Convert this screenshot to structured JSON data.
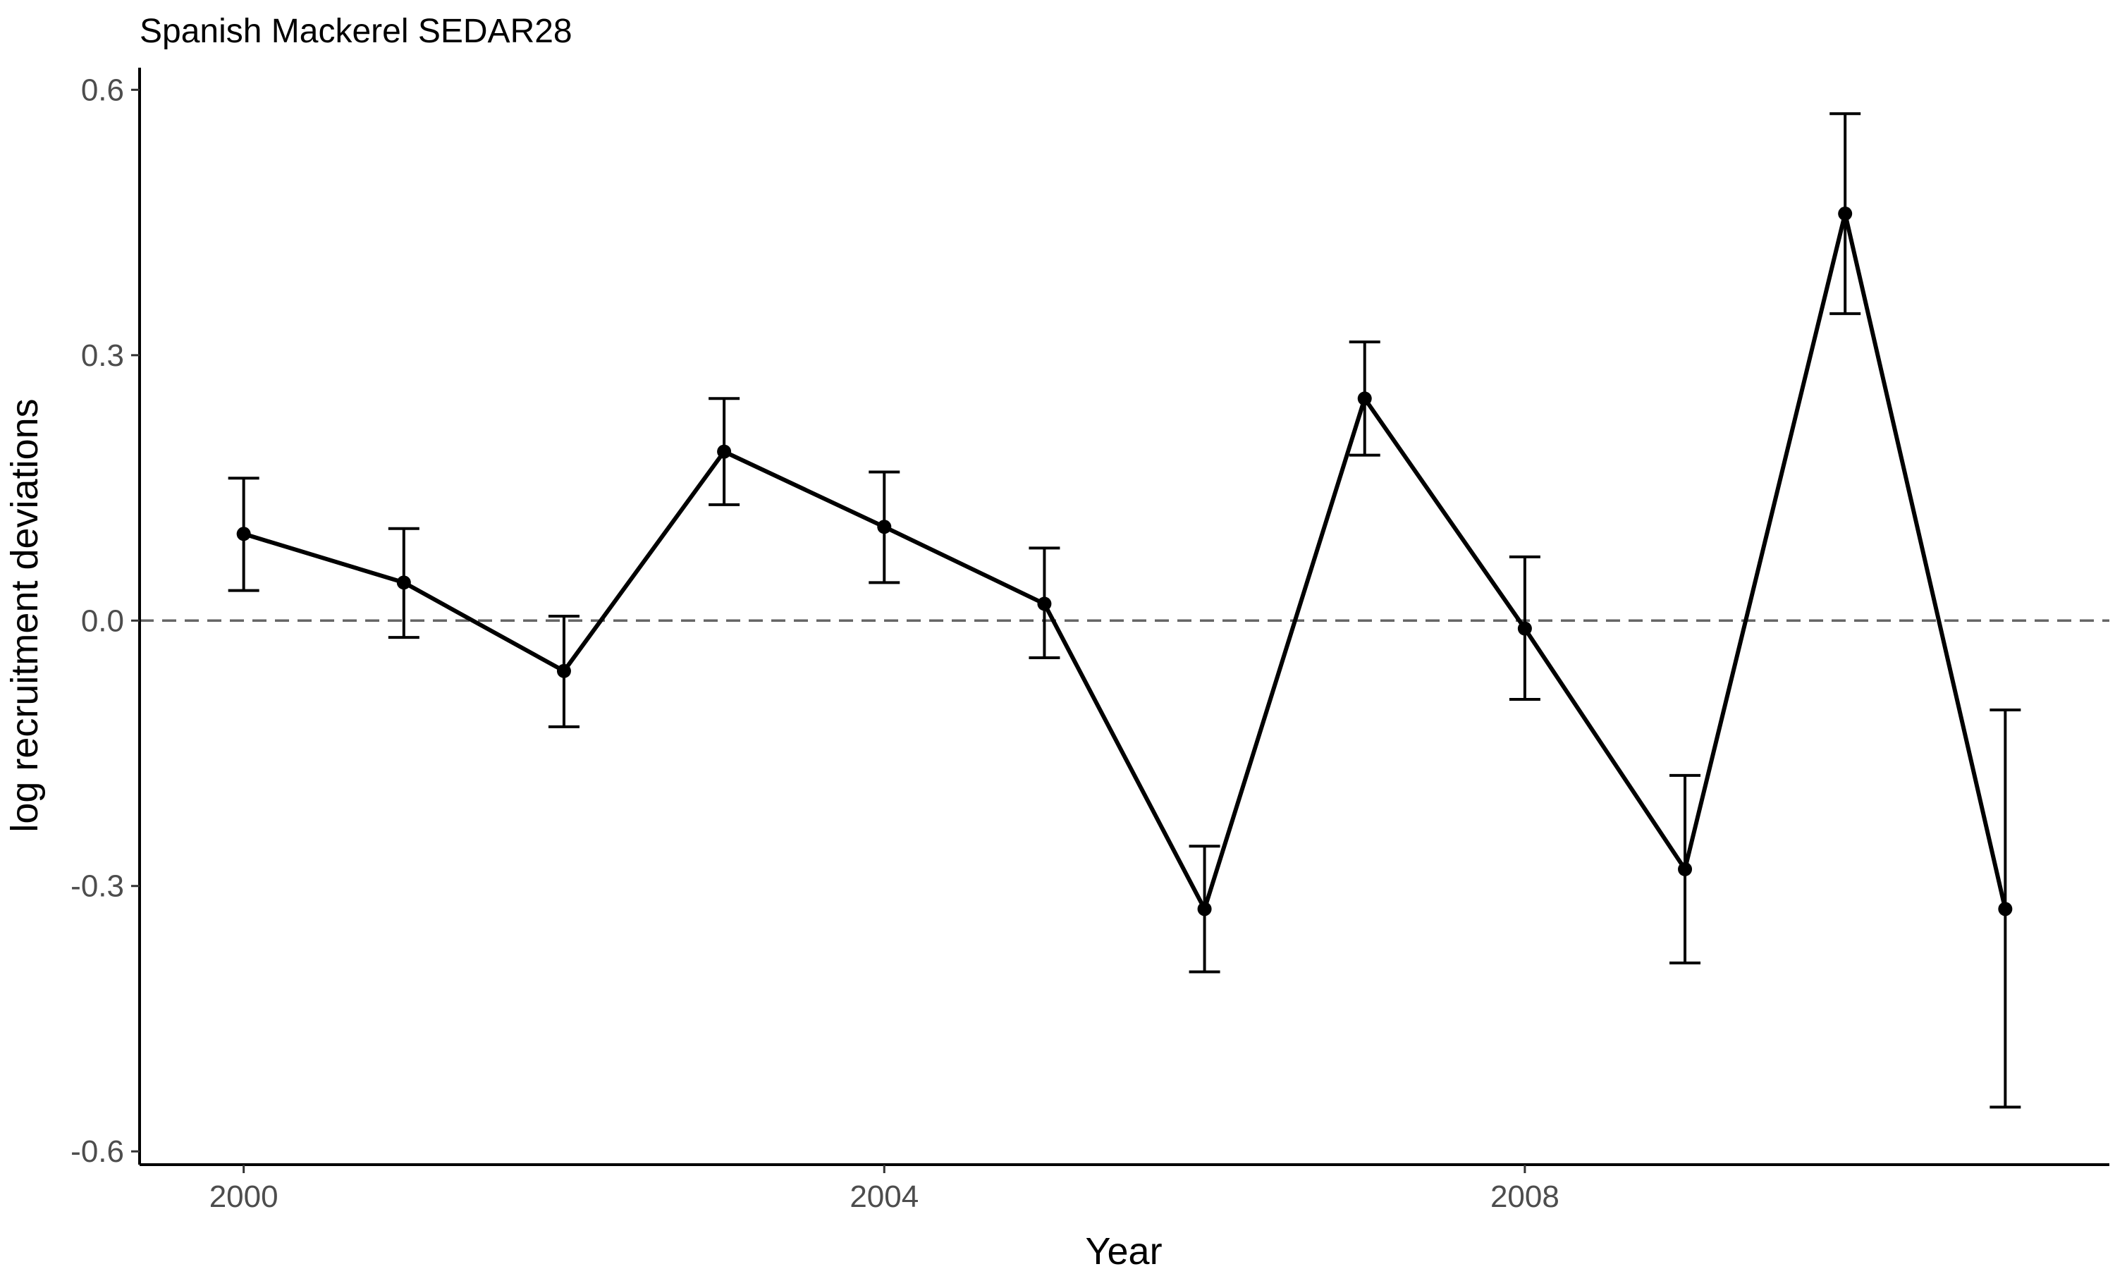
{
  "chart_data": {
    "type": "line",
    "title": "Spanish Mackerel SEDAR28",
    "xlabel": "Year",
    "ylabel": "log recruitment deviations",
    "xlim": [
      1999.35,
      2011.65
    ],
    "ylim": [
      -0.615,
      0.625
    ],
    "x_ticks": [
      2000,
      2004,
      2008
    ],
    "x_tick_labels": [
      "2000",
      "2004",
      "2008"
    ],
    "y_ticks": [
      -0.6,
      -0.3,
      0.0,
      0.3,
      0.6
    ],
    "y_tick_labels": [
      "-0.6",
      "-0.3",
      "0.0",
      "0.3",
      "0.6"
    ],
    "reference_line": {
      "y": 0.0,
      "style": "dashed",
      "color": "#666666"
    },
    "grid": false,
    "series": [
      {
        "x": [
          2000,
          2001,
          2002,
          2003,
          2004,
          2005,
          2006,
          2007,
          2008,
          2009,
          2010,
          2011
        ],
        "values": [
          0.098,
          0.043,
          -0.057,
          0.191,
          0.106,
          0.019,
          -0.326,
          0.251,
          -0.009,
          -0.281,
          0.46,
          -0.326
        ],
        "lower": [
          0.034,
          -0.019,
          -0.12,
          0.131,
          0.043,
          -0.042,
          -0.397,
          0.187,
          -0.089,
          -0.387,
          0.347,
          -0.55
        ],
        "upper": [
          0.161,
          0.104,
          0.005,
          0.251,
          0.168,
          0.082,
          -0.255,
          0.315,
          0.072,
          -0.175,
          0.573,
          -0.101
        ],
        "color": "#000000"
      }
    ]
  }
}
